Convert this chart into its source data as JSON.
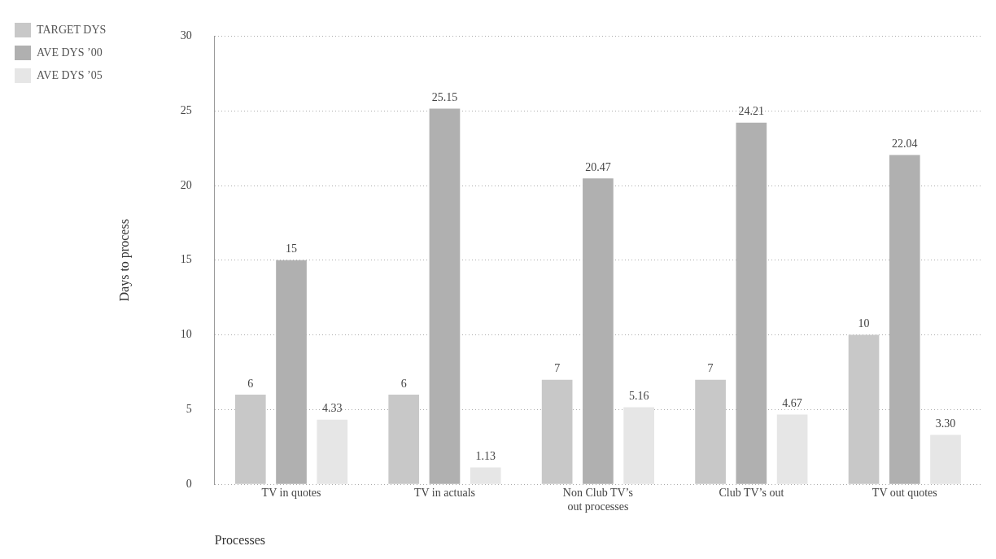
{
  "chart_data": {
    "type": "bar",
    "xlabel": "Processes",
    "ylabel": "Days to process",
    "categories": [
      "TV in quotes",
      "TV in actuals",
      "Non Club TV’s\nout processes",
      "Club TV’s out",
      "TV out quotes"
    ],
    "series": [
      {
        "name": "TARGET DYS",
        "color": "#c8c8c8",
        "values": [
          6,
          6,
          7,
          7,
          10
        ],
        "value_labels": [
          "6",
          "6",
          "7",
          "7",
          "10"
        ]
      },
      {
        "name": "AVE DYS ’00",
        "color": "#b0b0b0",
        "values": [
          15,
          25.15,
          20.47,
          24.21,
          22.04
        ],
        "value_labels": [
          "15",
          "25.15",
          "20.47",
          "24.21",
          "22.04"
        ]
      },
      {
        "name": "AVE DYS ’05",
        "color": "#e6e6e6",
        "values": [
          4.33,
          1.13,
          5.16,
          4.67,
          3.3
        ],
        "value_labels": [
          "4.33",
          "1.13",
          "5.16",
          "4.67",
          "3.30"
        ]
      }
    ],
    "ylim": [
      0,
      30
    ],
    "yticks": [
      0,
      5,
      10,
      15,
      20,
      25,
      30
    ],
    "grid": "y",
    "legend": "top left"
  }
}
